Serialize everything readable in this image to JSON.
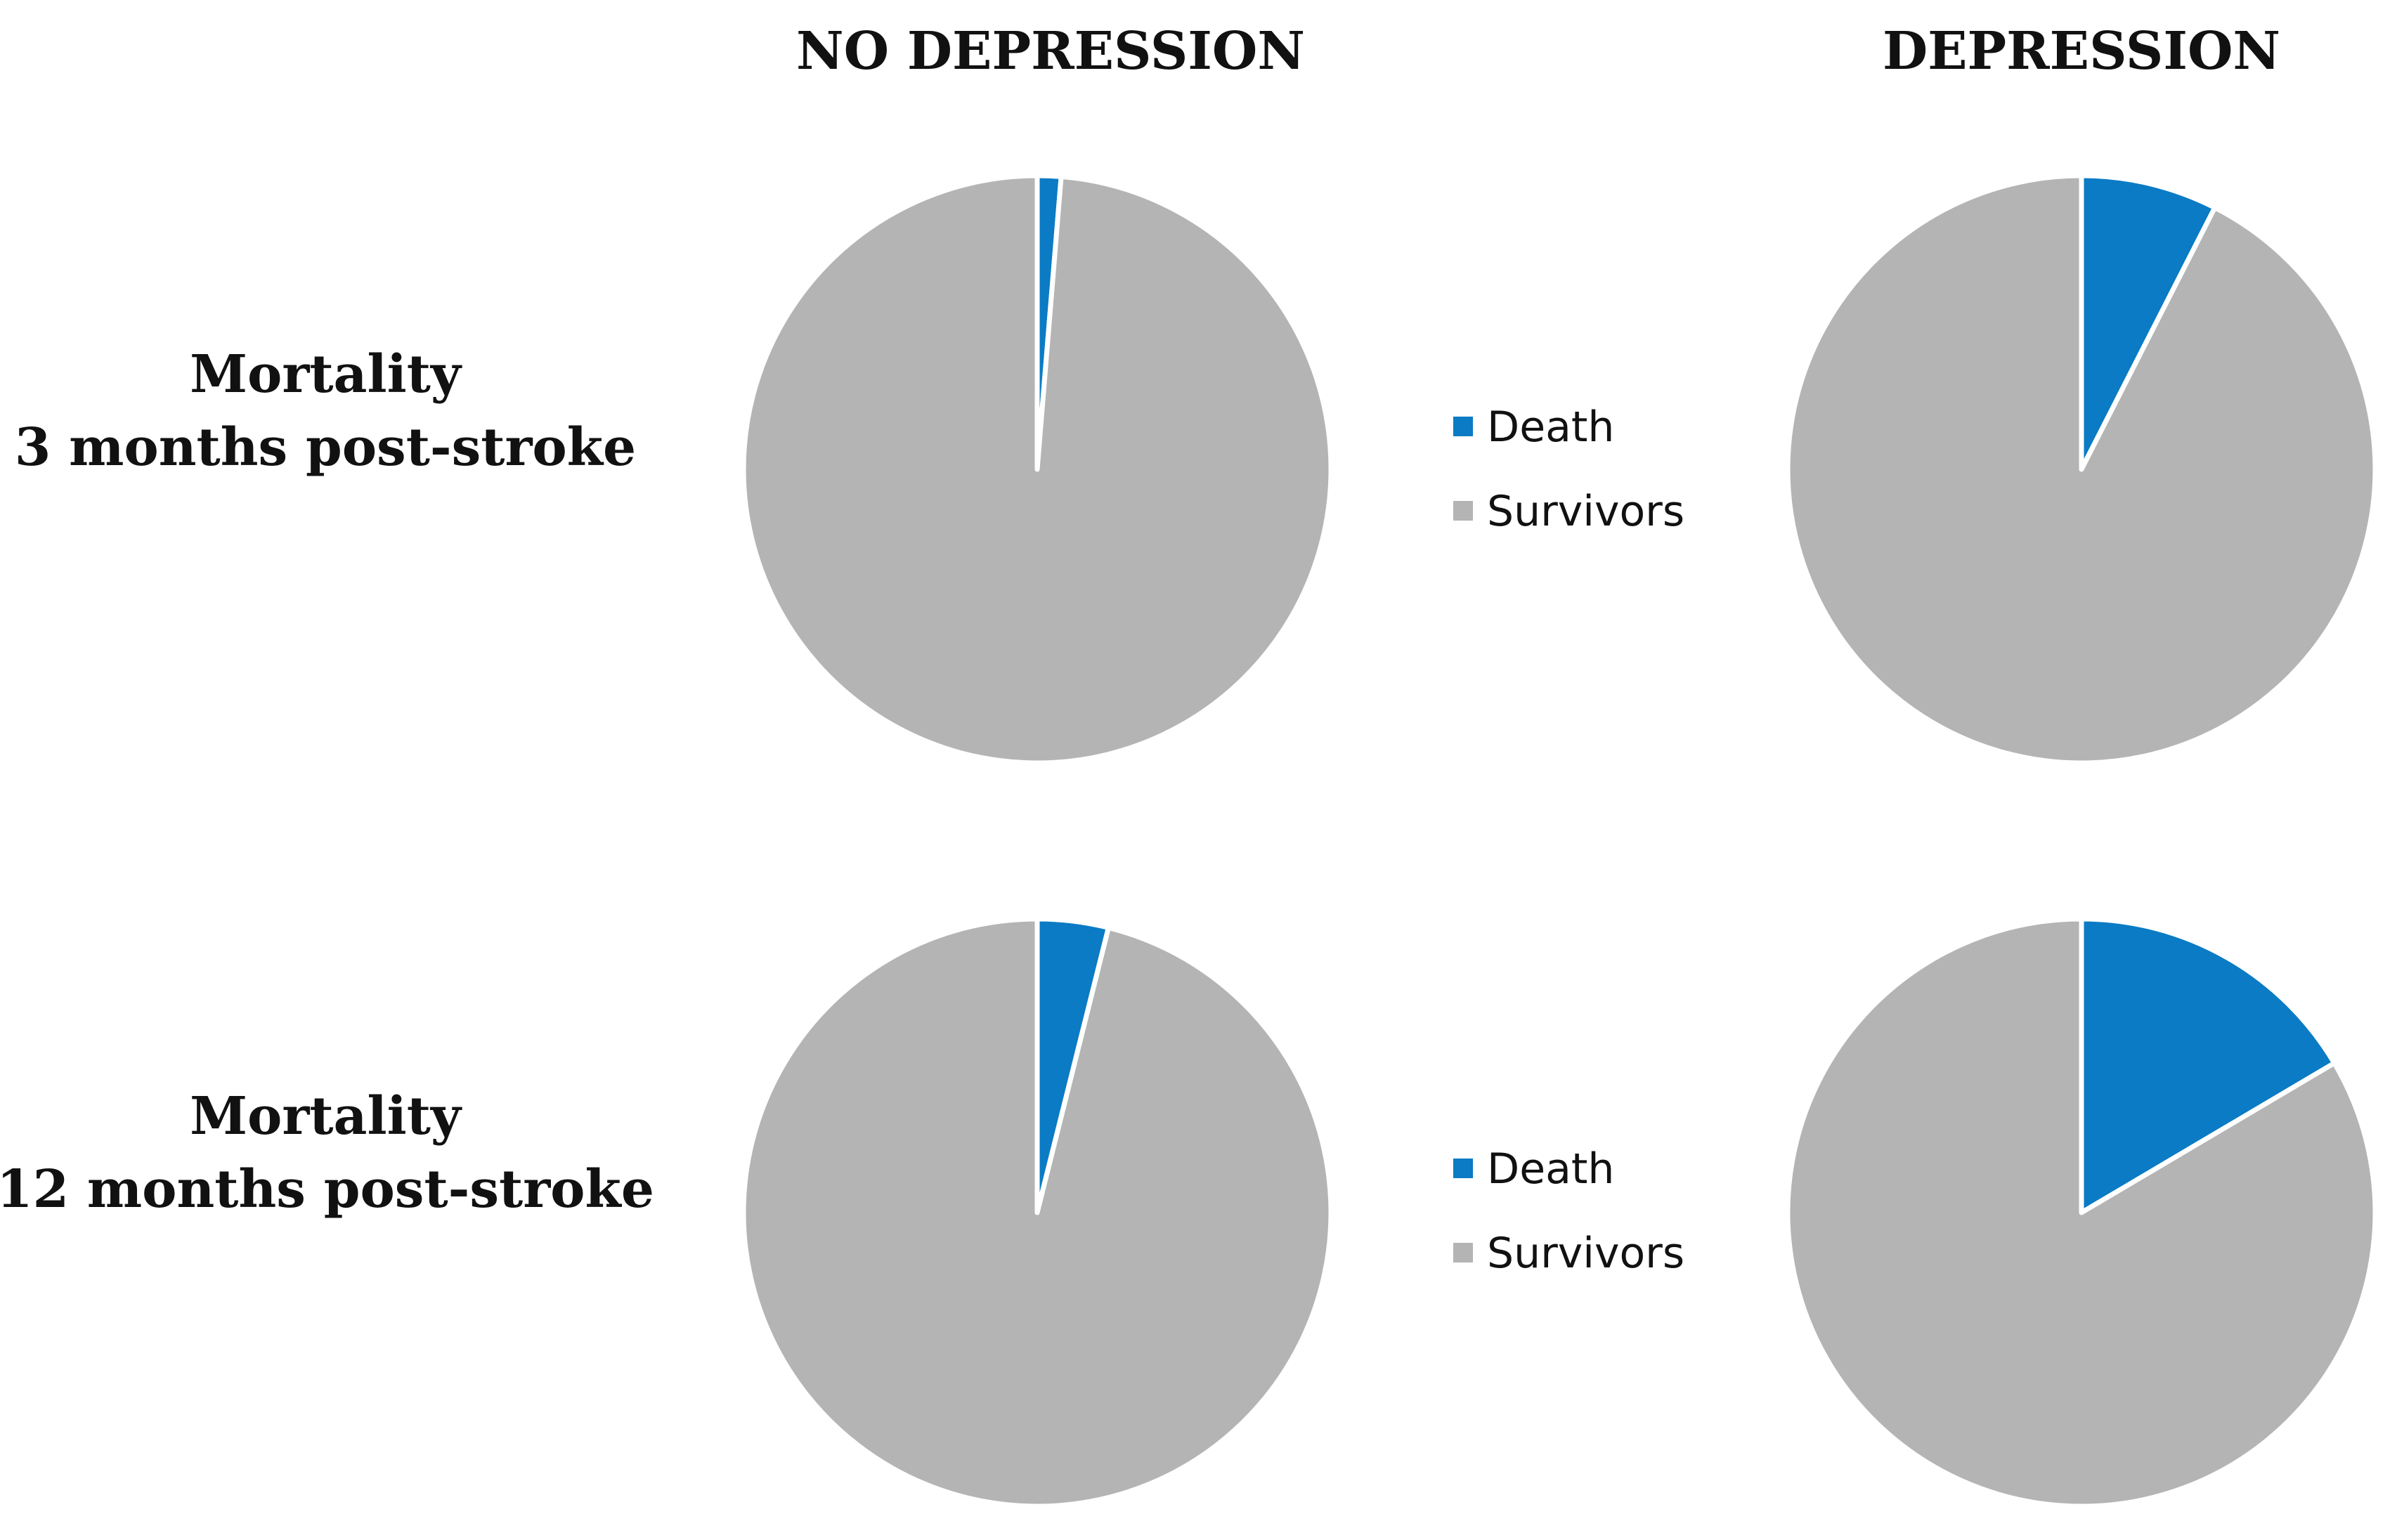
{
  "chart_data": {
    "type": "pie",
    "column_titles": [
      "NO DEPRESSION",
      "DEPRESSION"
    ],
    "row_titles": [
      {
        "line1": "Mortality",
        "line2": "3 months post-stroke"
      },
      {
        "line1": "Mortality",
        "line2": "12 months post-stroke"
      }
    ],
    "categories": [
      "Death",
      "Survivors"
    ],
    "colors": {
      "Death": "#0a7bc4",
      "Survivors": "#b4b4b4",
      "slice_border": "#ffffff"
    },
    "legend": {
      "placement": "center, between columns",
      "entries": [
        "Death",
        "Survivors"
      ]
    },
    "pies": [
      {
        "row": 0,
        "column": 0,
        "values": {
          "Death": 1.3,
          "Survivors": 98.7
        }
      },
      {
        "row": 0,
        "column": 1,
        "values": {
          "Death": 7.5,
          "Survivors": 92.5
        }
      },
      {
        "row": 1,
        "column": 0,
        "values": {
          "Death": 3.9,
          "Survivors": 96.1
        }
      },
      {
        "row": 1,
        "column": 1,
        "values": {
          "Death": 16.5,
          "Survivors": 83.5
        }
      }
    ]
  }
}
